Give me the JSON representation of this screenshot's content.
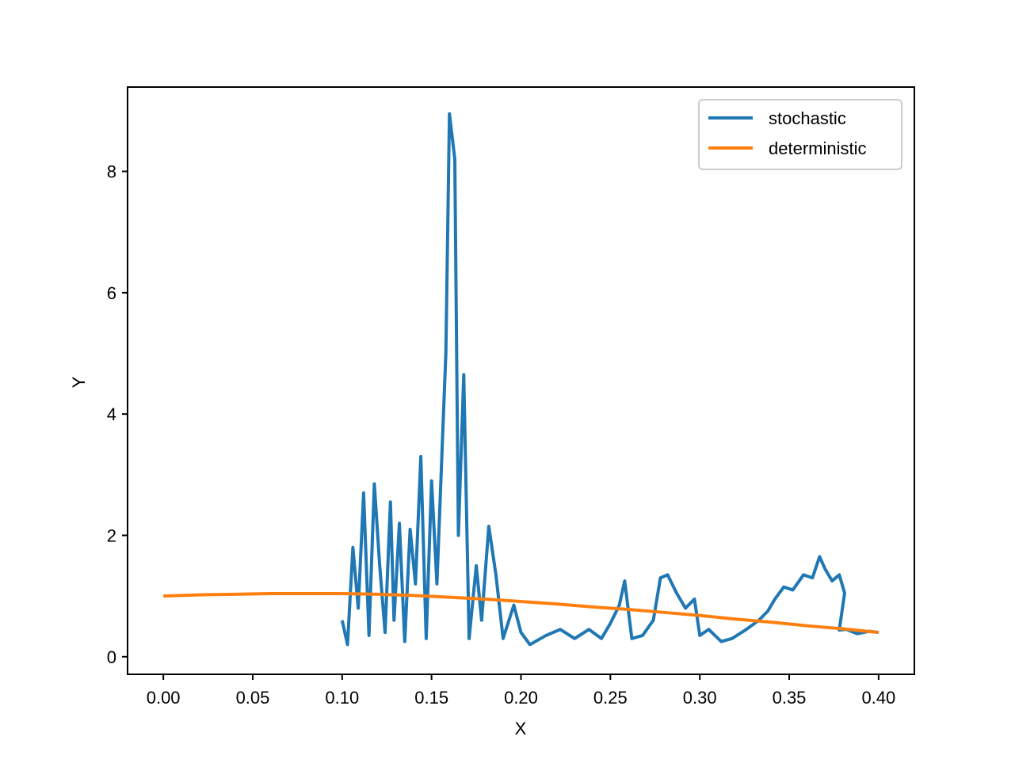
{
  "chart_data": {
    "type": "line",
    "xlabel": "X",
    "ylabel": "Y",
    "xlim": [
      -0.02,
      0.42
    ],
    "xticks": [
      {
        "value": 0,
        "label": "0.00"
      },
      0.05,
      {
        "value": 0.1,
        "label": "0.10"
      },
      0.15,
      {
        "value": 0.2,
        "label": "0.20"
      },
      0.25,
      {
        "value": 0.3,
        "label": "0.30"
      },
      0.35,
      {
        "value": 0.4,
        "label": "0.40"
      }
    ],
    "ylim": [
      -0.29,
      9.39
    ],
    "yticks": [
      0,
      2,
      4,
      6,
      8
    ],
    "legend": "upper right",
    "series": [
      {
        "name": "stochastic",
        "color": "#1f77b4",
        "x": [
          0.4,
          0.395,
          0.388,
          0.382,
          0.378,
          0.381,
          0.378,
          0.374,
          0.37,
          0.367,
          0.363,
          0.358,
          0.352,
          0.347,
          0.342,
          0.338,
          0.333,
          0.326,
          0.318,
          0.312,
          0.305,
          0.3,
          0.297,
          0.292,
          0.287,
          0.282,
          0.278,
          0.274,
          0.268,
          0.262,
          0.258,
          0.255,
          0.25,
          0.245,
          0.238,
          0.23,
          0.222,
          0.214,
          0.205,
          0.2,
          0.196,
          0.19,
          0.186,
          0.182,
          0.178,
          0.175,
          0.171,
          0.168,
          0.165,
          0.163,
          0.16,
          0.158,
          0.156,
          0.153,
          0.15,
          0.147,
          0.144,
          0.141,
          0.138,
          0.135,
          0.132,
          0.129,
          0.127,
          0.124,
          0.121,
          0.118,
          0.115,
          0.112,
          0.109,
          0.106,
          0.103,
          0.1
        ],
        "values": [
          0.4,
          0.42,
          0.38,
          0.45,
          0.44,
          1.05,
          1.35,
          1.25,
          1.45,
          1.65,
          1.3,
          1.35,
          1.1,
          1.15,
          0.95,
          0.75,
          0.6,
          0.45,
          0.3,
          0.25,
          0.45,
          0.35,
          0.95,
          0.8,
          1.05,
          1.35,
          1.3,
          0.6,
          0.35,
          0.3,
          1.25,
          0.85,
          0.55,
          0.3,
          0.45,
          0.3,
          0.45,
          0.35,
          0.2,
          0.4,
          0.85,
          0.3,
          1.35,
          2.15,
          0.6,
          1.5,
          0.3,
          4.65,
          2.0,
          8.2,
          8.95,
          5.0,
          3.5,
          1.2,
          2.9,
          0.3,
          3.3,
          1.2,
          2.1,
          0.25,
          2.2,
          0.6,
          2.55,
          0.4,
          1.5,
          2.85,
          0.35,
          2.7,
          0.8,
          1.8,
          0.2,
          0.6
        ]
      },
      {
        "name": "deterministic",
        "color": "#ff7f0e",
        "x": [
          0,
          0.02,
          0.04,
          0.06,
          0.08,
          0.1,
          0.12,
          0.14,
          0.16,
          0.18,
          0.2,
          0.22,
          0.24,
          0.26,
          0.28,
          0.3,
          0.32,
          0.34,
          0.36,
          0.38,
          0.4
        ],
        "values": [
          1.0,
          1.02,
          1.03,
          1.04,
          1.04,
          1.04,
          1.03,
          1.01,
          0.98,
          0.95,
          0.91,
          0.87,
          0.82,
          0.78,
          0.73,
          0.68,
          0.62,
          0.57,
          0.51,
          0.46,
          0.4
        ]
      }
    ]
  }
}
